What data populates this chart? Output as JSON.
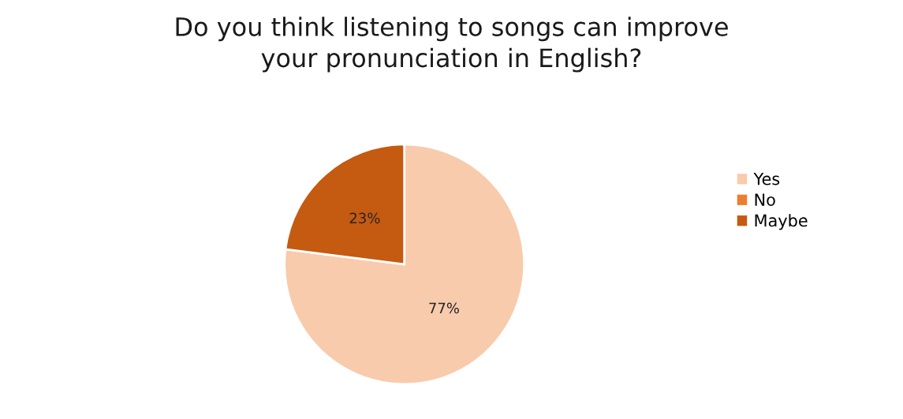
{
  "chart_data": {
    "type": "pie",
    "title": "Do you think listening to songs can improve\nyour pronunciation in English?",
    "categories": [
      "Yes",
      "No",
      "Maybe"
    ],
    "values": [
      77,
      0,
      23
    ],
    "colors": [
      "#f8cbad",
      "#ed7d31",
      "#c55a11"
    ],
    "value_labels": [
      "77%",
      null,
      "23%"
    ],
    "legend": "right"
  }
}
